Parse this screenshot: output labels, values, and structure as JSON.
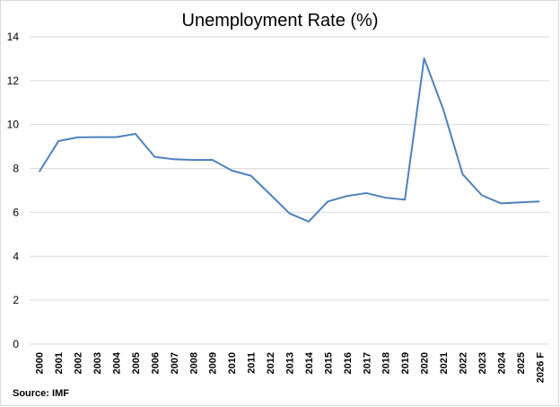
{
  "chart_data": {
    "type": "line",
    "title": "Unemployment Rate (%)",
    "source": "Source: IMF",
    "categories": [
      "2000",
      "2001",
      "2002",
      "2003",
      "2004",
      "2005",
      "2006",
      "2007",
      "2008",
      "2009",
      "2010",
      "2011",
      "2012",
      "2013",
      "2014",
      "2015",
      "2016",
      "2017",
      "2018",
      "2019",
      "2020",
      "2021",
      "2022",
      "2023",
      "2024",
      "2025",
      "2026 F"
    ],
    "series": [
      {
        "name": "Unemployment Rate",
        "color": "#4f81bd",
        "values": [
          7.85,
          9.25,
          9.42,
          9.43,
          9.43,
          9.58,
          8.53,
          8.42,
          8.39,
          8.39,
          7.91,
          7.67,
          6.82,
          5.96,
          5.58,
          6.5,
          6.75,
          6.88,
          6.67,
          6.58,
          13.02,
          10.68,
          7.74,
          6.78,
          6.41,
          6.46,
          6.5
        ]
      }
    ],
    "ylim": [
      0,
      14
    ],
    "yticks": [
      0,
      2,
      4,
      6,
      8,
      10,
      12,
      14
    ],
    "grid": true
  }
}
